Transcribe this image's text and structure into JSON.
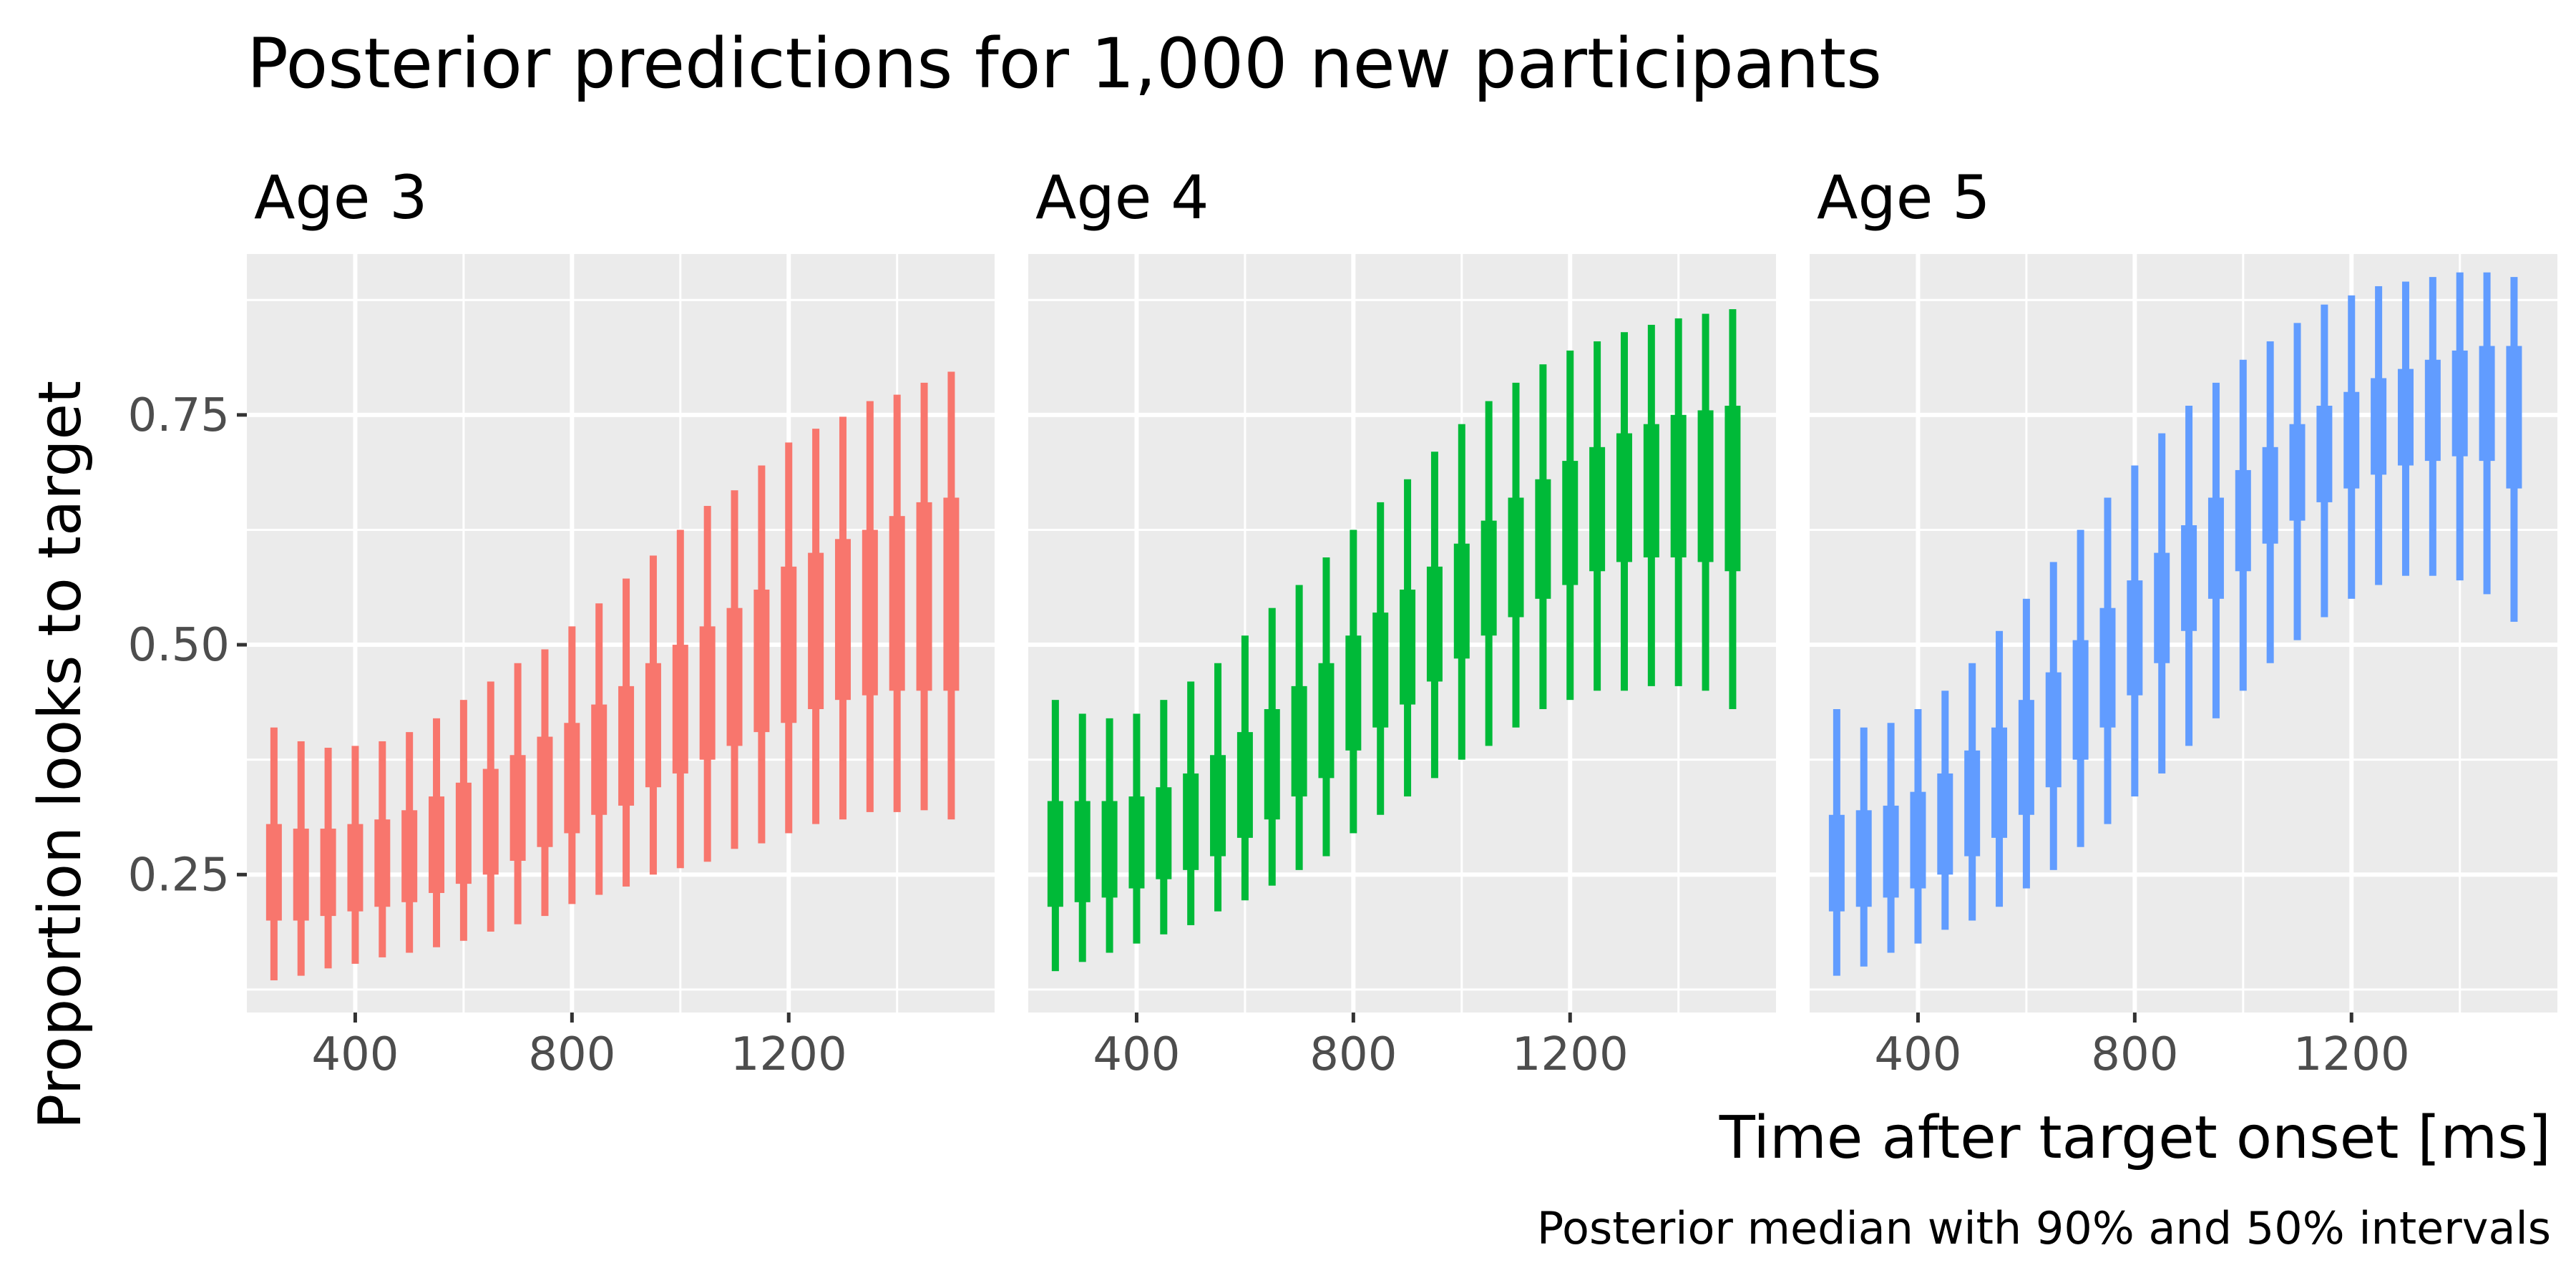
{
  "chart_data": {
    "type": "interval",
    "title": "Posterior predictions for 1,000 new participants",
    "xlabel": "Time after target onset [ms]",
    "ylabel": "Proportion looks to target",
    "caption": "Posterior median with 90% and 50% intervals",
    "xlim": [
      200,
      1580
    ],
    "ylim": [
      0.1,
      0.925
    ],
    "x_ticks": [
      400,
      800,
      1200
    ],
    "x_tick_labels": [
      "400",
      "800",
      "1200"
    ],
    "y_ticks": [
      0.25,
      0.5,
      0.75
    ],
    "y_tick_labels": [
      "0.25",
      "0.50",
      "0.75"
    ],
    "grid": true,
    "facet_by": "age",
    "x": [
      250,
      300,
      350,
      400,
      450,
      500,
      550,
      600,
      650,
      700,
      750,
      800,
      850,
      900,
      950,
      1000,
      1050,
      1100,
      1150,
      1200,
      1250,
      1300,
      1350,
      1400,
      1450,
      1500
    ],
    "series": [
      {
        "name": "Age 3",
        "color": "#F8766D",
        "low90": [
          0.135,
          0.14,
          0.148,
          0.153,
          0.16,
          0.165,
          0.171,
          0.178,
          0.188,
          0.196,
          0.205,
          0.218,
          0.228,
          0.237,
          0.25,
          0.257,
          0.264,
          0.278,
          0.284,
          0.295,
          0.305,
          0.31,
          0.318,
          0.318,
          0.32,
          0.31
        ],
        "high90": [
          0.41,
          0.395,
          0.388,
          0.39,
          0.395,
          0.405,
          0.42,
          0.44,
          0.46,
          0.48,
          0.495,
          0.52,
          0.545,
          0.572,
          0.597,
          0.625,
          0.651,
          0.668,
          0.695,
          0.72,
          0.735,
          0.748,
          0.765,
          0.772,
          0.785,
          0.797
        ],
        "low50": [
          0.2,
          0.2,
          0.205,
          0.21,
          0.215,
          0.22,
          0.23,
          0.24,
          0.25,
          0.265,
          0.28,
          0.295,
          0.315,
          0.325,
          0.345,
          0.36,
          0.375,
          0.39,
          0.405,
          0.415,
          0.43,
          0.44,
          0.445,
          0.45,
          0.45,
          0.45
        ],
        "high50": [
          0.305,
          0.3,
          0.3,
          0.305,
          0.31,
          0.32,
          0.335,
          0.35,
          0.365,
          0.38,
          0.4,
          0.415,
          0.435,
          0.455,
          0.48,
          0.5,
          0.52,
          0.54,
          0.56,
          0.585,
          0.6,
          0.615,
          0.625,
          0.64,
          0.655,
          0.66
        ]
      },
      {
        "name": "Age 4",
        "color": "#00BA38",
        "low90": [
          0.145,
          0.155,
          0.165,
          0.175,
          0.185,
          0.195,
          0.21,
          0.222,
          0.238,
          0.255,
          0.27,
          0.295,
          0.315,
          0.335,
          0.355,
          0.375,
          0.39,
          0.41,
          0.43,
          0.44,
          0.45,
          0.45,
          0.455,
          0.455,
          0.45,
          0.43
        ],
        "high90": [
          0.44,
          0.425,
          0.42,
          0.425,
          0.44,
          0.46,
          0.48,
          0.51,
          0.54,
          0.565,
          0.595,
          0.625,
          0.655,
          0.68,
          0.71,
          0.74,
          0.765,
          0.785,
          0.805,
          0.82,
          0.83,
          0.84,
          0.848,
          0.855,
          0.86,
          0.865
        ],
        "low50": [
          0.215,
          0.22,
          0.225,
          0.235,
          0.245,
          0.255,
          0.27,
          0.29,
          0.31,
          0.335,
          0.355,
          0.385,
          0.41,
          0.435,
          0.46,
          0.485,
          0.51,
          0.53,
          0.55,
          0.565,
          0.58,
          0.59,
          0.595,
          0.595,
          0.59,
          0.58
        ],
        "high50": [
          0.33,
          0.33,
          0.33,
          0.335,
          0.345,
          0.36,
          0.38,
          0.405,
          0.43,
          0.455,
          0.48,
          0.51,
          0.535,
          0.56,
          0.585,
          0.61,
          0.635,
          0.66,
          0.68,
          0.7,
          0.715,
          0.73,
          0.74,
          0.75,
          0.755,
          0.76
        ]
      },
      {
        "name": "Age 5",
        "color": "#619CFF",
        "low90": [
          0.14,
          0.15,
          0.165,
          0.175,
          0.19,
          0.2,
          0.215,
          0.235,
          0.255,
          0.28,
          0.305,
          0.335,
          0.36,
          0.39,
          0.42,
          0.45,
          0.48,
          0.505,
          0.53,
          0.55,
          0.565,
          0.575,
          0.575,
          0.57,
          0.555,
          0.525
        ],
        "high90": [
          0.43,
          0.41,
          0.415,
          0.43,
          0.45,
          0.48,
          0.515,
          0.55,
          0.59,
          0.625,
          0.66,
          0.695,
          0.73,
          0.76,
          0.785,
          0.81,
          0.83,
          0.85,
          0.87,
          0.88,
          0.89,
          0.895,
          0.9,
          0.905,
          0.905,
          0.9
        ],
        "low50": [
          0.21,
          0.215,
          0.225,
          0.235,
          0.25,
          0.27,
          0.29,
          0.315,
          0.345,
          0.375,
          0.41,
          0.445,
          0.48,
          0.515,
          0.55,
          0.58,
          0.61,
          0.635,
          0.655,
          0.67,
          0.685,
          0.695,
          0.7,
          0.705,
          0.7,
          0.67
        ],
        "high50": [
          0.315,
          0.32,
          0.325,
          0.34,
          0.36,
          0.385,
          0.41,
          0.44,
          0.47,
          0.505,
          0.54,
          0.57,
          0.6,
          0.63,
          0.66,
          0.69,
          0.715,
          0.74,
          0.76,
          0.775,
          0.79,
          0.8,
          0.81,
          0.82,
          0.825,
          0.825
        ]
      }
    ]
  }
}
